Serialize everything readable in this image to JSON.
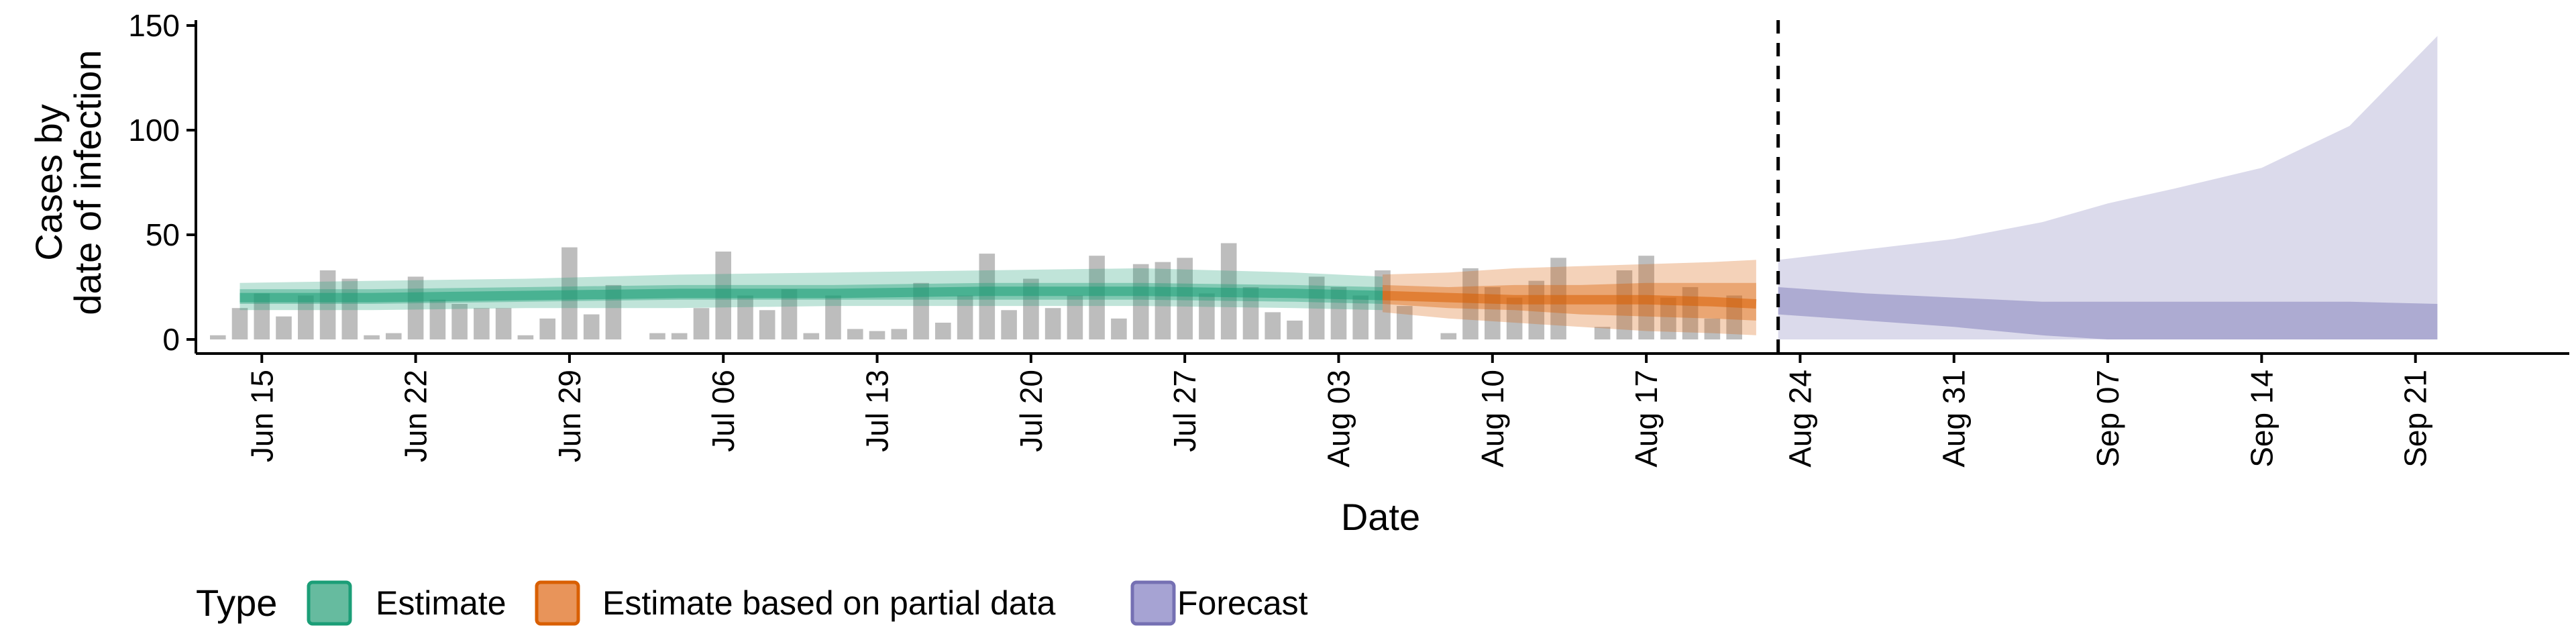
{
  "chart_data": {
    "type": "area",
    "ylabel_lines": [
      "Cases by",
      "date of infection"
    ],
    "xlabel": "Date",
    "ylim": [
      0,
      150
    ],
    "yticks": [
      0,
      50,
      100,
      150
    ],
    "x_start": "Jun 12",
    "x_end": "Sep 28",
    "x_tick_labels": [
      "Jun 15",
      "Jun 22",
      "Jun 29",
      "Jul 06",
      "Jul 13",
      "Jul 20",
      "Jul 27",
      "Aug 03",
      "Aug 10",
      "Aug 17",
      "Aug 24",
      "Aug 31",
      "Sep 07",
      "Sep 14",
      "Sep 21"
    ],
    "x_tick_dates": [
      "2020-06-15",
      "2020-06-22",
      "2020-06-29",
      "2020-07-06",
      "2020-07-13",
      "2020-07-20",
      "2020-07-27",
      "2020-08-03",
      "2020-08-10",
      "2020-08-17",
      "2020-08-24",
      "2020-08-31",
      "2020-09-07",
      "2020-09-14",
      "2020-09-21"
    ],
    "forecast_start_date": "2020-08-23",
    "bars": {
      "start_date": "2020-06-13",
      "values": [
        2,
        15,
        22,
        11,
        21,
        33,
        29,
        2,
        3,
        30,
        19,
        17,
        15,
        15,
        2,
        10,
        44,
        12,
        26,
        0,
        3,
        3,
        15,
        42,
        21,
        14,
        24,
        3,
        21,
        5,
        4,
        5,
        27,
        8,
        21,
        41,
        14,
        29,
        15,
        21,
        40,
        10,
        36,
        37,
        39,
        22,
        46,
        25,
        13,
        9,
        30,
        25,
        21,
        33,
        16,
        0,
        3,
        34,
        25,
        20,
        28,
        39,
        0,
        6,
        33,
        40,
        20,
        25,
        10,
        21,
        0
      ]
    },
    "bands": {
      "Estimate": {
        "dates": [
          "2020-06-14",
          "2020-06-20",
          "2020-06-27",
          "2020-07-04",
          "2020-07-11",
          "2020-07-18",
          "2020-07-25",
          "2020-08-01",
          "2020-08-05"
        ],
        "median": [
          20,
          20,
          21,
          22,
          22,
          23,
          23,
          22,
          21
        ],
        "inner_low": [
          17,
          17,
          18,
          19,
          19,
          19,
          19,
          18,
          17
        ],
        "inner_high": [
          24,
          24,
          25,
          26,
          26,
          27,
          27,
          26,
          25
        ],
        "outer_low": [
          14,
          14,
          15,
          15,
          16,
          16,
          16,
          15,
          14
        ],
        "outer_high": [
          27,
          28,
          29,
          31,
          32,
          33,
          34,
          32,
          30
        ]
      },
      "Estimate based on partial data": {
        "dates": [
          "2020-08-05",
          "2020-08-08",
          "2020-08-11",
          "2020-08-14",
          "2020-08-17",
          "2020-08-20",
          "2020-08-22"
        ],
        "median": [
          21,
          20,
          19,
          19,
          19,
          18,
          17
        ],
        "inner_low": [
          17,
          15,
          14,
          12,
          11,
          10,
          9
        ],
        "inner_high": [
          26,
          25,
          26,
          26,
          27,
          27,
          27
        ],
        "outer_low": [
          13,
          10,
          8,
          6,
          4,
          3,
          2
        ],
        "outer_high": [
          31,
          32,
          34,
          35,
          36,
          37,
          38
        ]
      },
      "Forecast": {
        "dates": [
          "2020-08-23",
          "2020-08-27",
          "2020-08-31",
          "2020-09-04",
          "2020-09-07",
          "2020-09-10",
          "2020-09-14",
          "2020-09-18",
          "2020-09-22"
        ],
        "inner_low": [
          12,
          9,
          6,
          2,
          0,
          0,
          0,
          0,
          0
        ],
        "inner_high": [
          25,
          22,
          20,
          18,
          18,
          18,
          18,
          18,
          17
        ],
        "outer_low": [
          0,
          0,
          0,
          0,
          0,
          0,
          0,
          0,
          0
        ],
        "outer_high": [
          38,
          43,
          48,
          56,
          65,
          72,
          82,
          102,
          145
        ]
      }
    },
    "legend": {
      "title": "Type",
      "placement": "bottom",
      "items": [
        "Estimate",
        "Estimate based on partial data",
        "Forecast"
      ]
    },
    "colors": {
      "Estimate": "#1b9e77",
      "Estimate based on partial data": "#d95f02",
      "Forecast": "#7570b3",
      "bars": "#bdbdbd",
      "legend_Estimate": "#66bb9f",
      "legend_Estimate based on partial data": "#e8945a",
      "legend_Forecast": "#a6a3d3"
    },
    "grid": false
  }
}
